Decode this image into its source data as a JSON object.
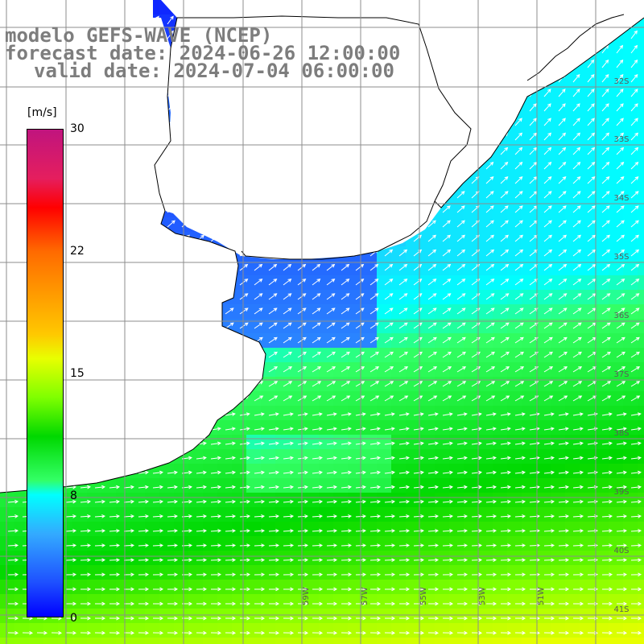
{
  "title": {
    "line1": "modelo GEFS-WAVE (NCEP)",
    "line2": "forecast date: 2024-06-26 12:00:00",
    "line3": "valid date: 2024-07-04 06:00:00"
  },
  "colorbar": {
    "unit": "[m/s]",
    "ticks": [
      "30",
      "22",
      "15",
      "8",
      "0"
    ],
    "tick_values": [
      30,
      22,
      15,
      8,
      0
    ]
  },
  "lat_labels": [
    "32S",
    "33S",
    "34S",
    "35S",
    "36S",
    "37S",
    "38S",
    "39S",
    "40S",
    "41S"
  ],
  "lon_labels": [
    "59W",
    "57W",
    "55W",
    "53W",
    "51W"
  ],
  "colors": {
    "land": "#ffffff",
    "coast": "#000000",
    "grid": "#8c8c8c",
    "arrow": "#ffffff",
    "title": "#7d7d7d"
  }
}
